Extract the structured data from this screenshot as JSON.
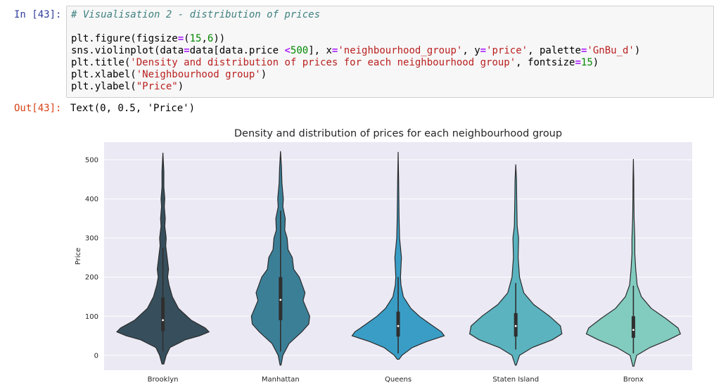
{
  "cell": {
    "in_prompt": "In [43]:",
    "out_prompt": "Out[43]:",
    "output_text": "Text(0, 0.5, 'Price')",
    "code_lines": [
      [
        [
          "c-com",
          "# Visualisation 2 - distribution of prices"
        ]
      ],
      [],
      [
        [
          "",
          "plt.figure(figsize"
        ],
        [
          "c-op",
          "="
        ],
        [
          "",
          "("
        ],
        [
          "c-num",
          "15"
        ],
        [
          "",
          ","
        ],
        [
          "c-num",
          "6"
        ],
        [
          "",
          "))"
        ]
      ],
      [
        [
          "",
          "sns.violinplot(data"
        ],
        [
          "c-op",
          "="
        ],
        [
          "",
          "data[data.price "
        ],
        [
          "c-op",
          "<"
        ],
        [
          "c-num",
          "500"
        ],
        [
          "",
          "], x"
        ],
        [
          "c-op",
          "="
        ],
        [
          "c-str",
          "'neighbourhood_group'"
        ],
        [
          "",
          ", y"
        ],
        [
          "c-op",
          "="
        ],
        [
          "c-str",
          "'price'"
        ],
        [
          "",
          ", palette"
        ],
        [
          "c-op",
          "="
        ],
        [
          "c-str",
          "'GnBu_d'"
        ],
        [
          "",
          ")"
        ]
      ],
      [
        [
          "",
          "plt.title("
        ],
        [
          "c-str",
          "'Density and distribution of prices for each neighbourhood group'"
        ],
        [
          "",
          ", fontsize"
        ],
        [
          "c-op",
          "="
        ],
        [
          "c-num",
          "15"
        ],
        [
          "",
          ")"
        ]
      ],
      [
        [
          "",
          "plt.xlabel("
        ],
        [
          "c-str",
          "'Neighbourhood group'"
        ],
        [
          "",
          ")"
        ]
      ],
      [
        [
          "",
          "plt.ylabel("
        ],
        [
          "c-str",
          "\"Price\""
        ],
        [
          "",
          ")"
        ]
      ]
    ]
  },
  "chart_data": {
    "type": "violin",
    "title": "Density and distribution of prices for each neighbourhood group",
    "ylabel": "Price",
    "xlabel": "",
    "ylim": [
      -38,
      545
    ],
    "yticks": [
      0,
      100,
      200,
      300,
      400,
      500
    ],
    "grid": true,
    "background": "#eae9f4",
    "categories": [
      "Brooklyn",
      "Manhattan",
      "Queens",
      "Staten Island",
      "Bronx"
    ],
    "colors": [
      "#374f5c",
      "#3b7f97",
      "#3a9dc6",
      "#5ab3bf",
      "#82cbbf"
    ],
    "violins": [
      {
        "min": -22,
        "max": 518,
        "q1": 62,
        "median": 90,
        "q3": 148,
        "whisker_low": 10,
        "whisker_high": 275,
        "density": [
          [
            -22,
            0.02
          ],
          [
            0,
            0.07
          ],
          [
            20,
            0.15
          ],
          [
            40,
            0.48
          ],
          [
            50,
            0.78
          ],
          [
            60,
            0.98
          ],
          [
            70,
            0.9
          ],
          [
            90,
            0.6
          ],
          [
            120,
            0.33
          ],
          [
            150,
            0.2
          ],
          [
            180,
            0.13
          ],
          [
            200,
            0.1
          ],
          [
            220,
            0.12
          ],
          [
            250,
            0.09
          ],
          [
            280,
            0.06
          ],
          [
            300,
            0.07
          ],
          [
            330,
            0.04
          ],
          [
            350,
            0.05
          ],
          [
            380,
            0.03
          ],
          [
            400,
            0.04
          ],
          [
            430,
            0.02
          ],
          [
            470,
            0.02
          ],
          [
            518,
            0
          ]
        ]
      },
      {
        "min": -25,
        "max": 522,
        "q1": 90,
        "median": 142,
        "q3": 200,
        "whisker_low": 10,
        "whisker_high": 370,
        "density": [
          [
            -25,
            0.01
          ],
          [
            0,
            0.05
          ],
          [
            30,
            0.18
          ],
          [
            60,
            0.45
          ],
          [
            80,
            0.6
          ],
          [
            100,
            0.62
          ],
          [
            120,
            0.55
          ],
          [
            140,
            0.48
          ],
          [
            160,
            0.52
          ],
          [
            180,
            0.46
          ],
          [
            200,
            0.4
          ],
          [
            220,
            0.28
          ],
          [
            250,
            0.25
          ],
          [
            270,
            0.16
          ],
          [
            300,
            0.14
          ],
          [
            320,
            0.09
          ],
          [
            350,
            0.1
          ],
          [
            380,
            0.05
          ],
          [
            400,
            0.06
          ],
          [
            440,
            0.03
          ],
          [
            480,
            0.02
          ],
          [
            522,
            0
          ]
        ]
      },
      {
        "min": -10,
        "max": 520,
        "q1": 48,
        "median": 75,
        "q3": 112,
        "whisker_low": 5,
        "whisker_high": 200,
        "density": [
          [
            -10,
            0.02
          ],
          [
            0,
            0.08
          ],
          [
            20,
            0.3
          ],
          [
            35,
            0.6
          ],
          [
            50,
            0.98
          ],
          [
            60,
            0.92
          ],
          [
            80,
            0.68
          ],
          [
            100,
            0.45
          ],
          [
            120,
            0.27
          ],
          [
            150,
            0.11
          ],
          [
            180,
            0.06
          ],
          [
            200,
            0.05
          ],
          [
            250,
            0.07
          ],
          [
            300,
            0.03
          ],
          [
            350,
            0.02
          ],
          [
            400,
            0.015
          ],
          [
            450,
            0.01
          ],
          [
            520,
            0
          ]
        ]
      },
      {
        "min": -25,
        "max": 488,
        "q1": 48,
        "median": 75,
        "q3": 108,
        "whisker_low": 15,
        "whisker_high": 185,
        "density": [
          [
            -25,
            0.01
          ],
          [
            0,
            0.08
          ],
          [
            20,
            0.35
          ],
          [
            40,
            0.78
          ],
          [
            55,
            0.98
          ],
          [
            75,
            0.95
          ],
          [
            100,
            0.72
          ],
          [
            130,
            0.38
          ],
          [
            160,
            0.17
          ],
          [
            200,
            0.08
          ],
          [
            250,
            0.05
          ],
          [
            300,
            0.06
          ],
          [
            330,
            0.03
          ],
          [
            400,
            0.02
          ],
          [
            450,
            0.015
          ],
          [
            488,
            0
          ]
        ]
      },
      {
        "min": -28,
        "max": 502,
        "q1": 45,
        "median": 65,
        "q3": 100,
        "whisker_low": 5,
        "whisker_high": 178,
        "density": [
          [
            -28,
            0.01
          ],
          [
            0,
            0.07
          ],
          [
            20,
            0.35
          ],
          [
            40,
            0.75
          ],
          [
            55,
            1
          ],
          [
            70,
            0.95
          ],
          [
            95,
            0.68
          ],
          [
            120,
            0.38
          ],
          [
            150,
            0.17
          ],
          [
            180,
            0.08
          ],
          [
            220,
            0.05
          ],
          [
            260,
            0.03
          ],
          [
            300,
            0.03
          ],
          [
            350,
            0.015
          ],
          [
            400,
            0.01
          ],
          [
            450,
            0.008
          ],
          [
            502,
            0
          ]
        ]
      }
    ]
  }
}
